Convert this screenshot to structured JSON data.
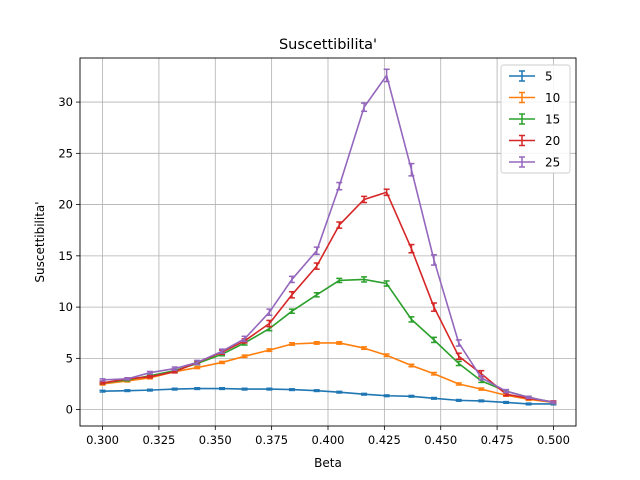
{
  "chart_data": {
    "type": "line",
    "title": "Suscettibilita'",
    "xlabel": "Beta",
    "ylabel": "Suscettibilita'",
    "xlim": [
      0.29,
      0.51
    ],
    "ylim": [
      -1.6,
      34.3
    ],
    "grid": true,
    "legend_position": "top-right",
    "x_ticks": [
      {
        "value": 0.3,
        "label": "0.300"
      },
      {
        "value": 0.325,
        "label": "0.325"
      },
      {
        "value": 0.35,
        "label": "0.350"
      },
      {
        "value": 0.375,
        "label": "0.375"
      },
      {
        "value": 0.4,
        "label": "0.400"
      },
      {
        "value": 0.425,
        "label": "0.425"
      },
      {
        "value": 0.45,
        "label": "0.450"
      },
      {
        "value": 0.475,
        "label": "0.475"
      },
      {
        "value": 0.5,
        "label": "0.500"
      }
    ],
    "y_ticks": [
      {
        "value": 0,
        "label": "0"
      },
      {
        "value": 5,
        "label": "5"
      },
      {
        "value": 10,
        "label": "10"
      },
      {
        "value": 15,
        "label": "15"
      },
      {
        "value": 20,
        "label": "20"
      },
      {
        "value": 25,
        "label": "25"
      },
      {
        "value": 30,
        "label": "30"
      }
    ],
    "x": [
      0.3,
      0.311,
      0.321,
      0.332,
      0.342,
      0.353,
      0.363,
      0.374,
      0.384,
      0.395,
      0.405,
      0.416,
      0.426,
      0.437,
      0.447,
      0.458,
      0.468,
      0.479,
      0.489,
      0.5
    ],
    "series": [
      {
        "name": "5",
        "color": "#1f77b4",
        "values": [
          1.8,
          1.85,
          1.9,
          2.0,
          2.05,
          2.05,
          2.0,
          2.0,
          1.95,
          1.85,
          1.7,
          1.5,
          1.35,
          1.3,
          1.1,
          0.9,
          0.85,
          0.7,
          0.55,
          0.55
        ],
        "errors": [
          0.08,
          0.08,
          0.08,
          0.08,
          0.08,
          0.08,
          0.08,
          0.08,
          0.08,
          0.08,
          0.08,
          0.08,
          0.08,
          0.08,
          0.08,
          0.08,
          0.08,
          0.08,
          0.08,
          0.08
        ]
      },
      {
        "name": "10",
        "color": "#ff7f0e",
        "values": [
          2.5,
          2.8,
          3.1,
          3.7,
          4.1,
          4.6,
          5.2,
          5.8,
          6.4,
          6.5,
          6.5,
          6.0,
          5.3,
          4.3,
          3.5,
          2.5,
          2.0,
          1.4,
          1.0,
          0.7
        ],
        "errors": [
          0.1,
          0.1,
          0.1,
          0.1,
          0.1,
          0.1,
          0.12,
          0.12,
          0.12,
          0.12,
          0.12,
          0.12,
          0.12,
          0.12,
          0.12,
          0.1,
          0.1,
          0.1,
          0.1,
          0.1
        ]
      },
      {
        "name": "15",
        "color": "#2ca02c",
        "values": [
          2.6,
          2.9,
          3.3,
          3.8,
          4.5,
          5.4,
          6.5,
          7.9,
          9.6,
          11.2,
          12.6,
          12.7,
          12.3,
          8.8,
          6.8,
          4.5,
          2.8,
          1.8,
          1.2,
          0.7
        ],
        "errors": [
          0.1,
          0.1,
          0.1,
          0.1,
          0.12,
          0.15,
          0.2,
          0.2,
          0.2,
          0.2,
          0.2,
          0.25,
          0.25,
          0.25,
          0.25,
          0.2,
          0.15,
          0.12,
          0.1,
          0.1
        ]
      },
      {
        "name": "20",
        "color": "#d62728",
        "values": [
          2.6,
          3.0,
          3.2,
          3.7,
          4.6,
          5.6,
          6.7,
          8.4,
          11.2,
          14.0,
          18.0,
          20.5,
          21.2,
          15.7,
          10.0,
          5.2,
          3.5,
          1.5,
          1.1,
          0.75
        ],
        "errors": [
          0.1,
          0.1,
          0.1,
          0.12,
          0.15,
          0.2,
          0.2,
          0.3,
          0.3,
          0.3,
          0.3,
          0.3,
          0.3,
          0.4,
          0.4,
          0.3,
          0.3,
          0.15,
          0.1,
          0.1
        ]
      },
      {
        "name": "25",
        "color": "#9467bd",
        "values": [
          2.9,
          3.0,
          3.6,
          4.0,
          4.6,
          5.7,
          6.9,
          9.5,
          12.7,
          15.5,
          21.8,
          29.5,
          32.6,
          23.4,
          14.6,
          6.5,
          3.1,
          1.8,
          1.2,
          0.7
        ],
        "errors": [
          0.1,
          0.1,
          0.12,
          0.15,
          0.2,
          0.2,
          0.25,
          0.3,
          0.3,
          0.35,
          0.35,
          0.4,
          0.6,
          0.6,
          0.5,
          0.3,
          0.2,
          0.15,
          0.1,
          0.1
        ]
      }
    ]
  }
}
